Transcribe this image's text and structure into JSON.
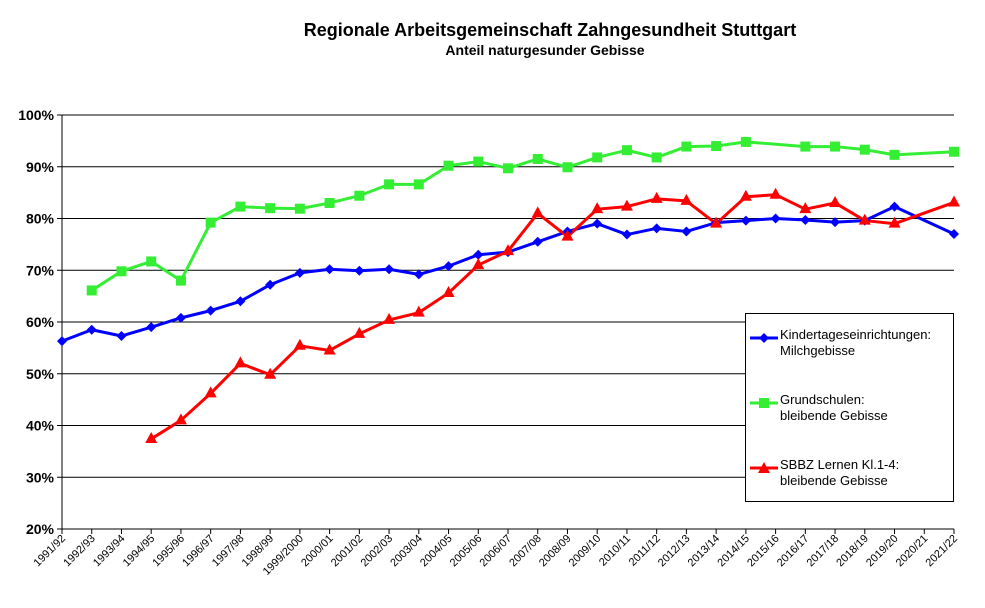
{
  "chart_data": {
    "type": "line",
    "title": "Regionale Arbeitsgemeinschaft Zahngesundheit Stuttgart",
    "subtitle": "Anteil naturgesunder Gebisse",
    "xlabel": "",
    "ylabel": "",
    "ylim": [
      20,
      100
    ],
    "yticks": [
      "20%",
      "30%",
      "40%",
      "50%",
      "60%",
      "70%",
      "80%",
      "90%",
      "100%"
    ],
    "grid": true,
    "legend_position": "right",
    "categories": [
      "1991/92",
      "1992/93",
      "1993/94",
      "1994/95",
      "1995/96",
      "1996/97",
      "1997/98",
      "1998/99",
      "1999/2000",
      "2000/01",
      "2001/02",
      "2002/03",
      "2003/04",
      "2004/05",
      "2005/06",
      "2006/07",
      "2007/08",
      "2008/09",
      "2009/10",
      "2010/11",
      "2011/12",
      "2012/13",
      "2013/14",
      "2014/15",
      "2015/16",
      "2016/17",
      "2017/18",
      "2018/19",
      "2019/20",
      "2020/21",
      "2021/22"
    ],
    "series": [
      {
        "name": "Kindertageseinrichtungen:\nMilchgebisse",
        "color": "#0000FF",
        "marker": "diamond",
        "values": [
          56.3,
          58.5,
          57.3,
          59.0,
          60.8,
          62.2,
          64.0,
          67.2,
          69.5,
          70.2,
          69.9,
          70.2,
          69.2,
          70.8,
          73.0,
          73.5,
          75.5,
          77.5,
          79.0,
          76.9,
          78.1,
          77.5,
          79.2,
          79.6,
          80.0,
          79.7,
          79.3,
          79.6,
          82.3,
          null,
          77.0
        ]
      },
      {
        "name": "Grundschulen:\nbleibende Gebisse",
        "color": "#33EE33",
        "marker": "square",
        "values": [
          null,
          66.1,
          69.8,
          71.7,
          68.0,
          79.2,
          82.3,
          82.0,
          81.9,
          83.0,
          84.4,
          86.6,
          86.6,
          90.2,
          91.0,
          89.7,
          91.5,
          89.9,
          91.8,
          93.2,
          91.8,
          93.9,
          94.0,
          94.8,
          null,
          93.9,
          93.9,
          93.3,
          92.3,
          null,
          92.9
        ]
      },
      {
        "name": "SBBZ Lernen Kl.1-4:\nbleibende Gebisse",
        "color": "#FF0000",
        "marker": "triangle",
        "values": [
          null,
          null,
          null,
          37.4,
          41.0,
          46.2,
          52.0,
          49.8,
          55.4,
          54.5,
          57.7,
          60.4,
          61.8,
          65.6,
          71.0,
          73.7,
          81.0,
          76.5,
          81.8,
          82.3,
          83.8,
          83.4,
          79.0,
          84.2,
          84.6,
          81.8,
          83.0,
          79.6,
          79.0,
          null,
          83.1
        ]
      }
    ]
  }
}
